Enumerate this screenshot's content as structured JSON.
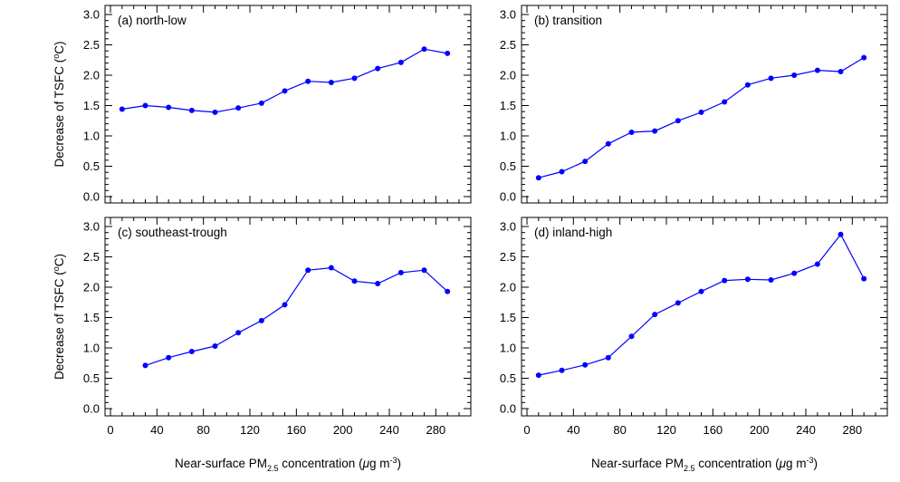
{
  "figure": {
    "ylabel": "Decrease of TSFC (",
    "ylabel_sup": "o",
    "ylabel_tail": "C)",
    "xlabel_pre": "Near-surface PM",
    "xlabel_sub": "2.5",
    "xlabel_mid": " concentration (",
    "xlabel_mu": "μ",
    "xlabel_unit": "g m",
    "xlabel_sup": "-3",
    "xlabel_close": ")"
  },
  "style": {
    "series_color": "#0000ff",
    "axis_color": "#000000"
  },
  "chart_data": [
    {
      "type": "line",
      "title": "(a) north-low",
      "xlim": [
        0,
        300
      ],
      "ylim": [
        0.0,
        3.0
      ],
      "x": [
        10,
        30,
        50,
        70,
        90,
        110,
        130,
        150,
        170,
        190,
        210,
        230,
        250,
        270,
        290
      ],
      "y": [
        1.44,
        1.5,
        1.47,
        1.42,
        1.39,
        1.46,
        1.54,
        1.74,
        1.9,
        1.88,
        1.95,
        2.11,
        2.21,
        2.43,
        2.36
      ]
    },
    {
      "type": "line",
      "title": "(b) transition",
      "xlim": [
        0,
        300
      ],
      "ylim": [
        0.0,
        3.0
      ],
      "x": [
        10,
        30,
        50,
        70,
        90,
        110,
        130,
        150,
        170,
        190,
        210,
        230,
        250,
        270,
        290
      ],
      "y": [
        0.31,
        0.41,
        0.58,
        0.87,
        1.06,
        1.08,
        1.25,
        1.39,
        1.56,
        1.84,
        1.95,
        2.0,
        2.08,
        2.06,
        2.29
      ]
    },
    {
      "type": "line",
      "title": "(c) southeast-trough",
      "xlim": [
        0,
        300
      ],
      "ylim": [
        0.0,
        3.0
      ],
      "x": [
        30,
        50,
        70,
        90,
        110,
        130,
        150,
        170,
        190,
        210,
        230,
        250,
        270,
        290
      ],
      "y": [
        0.71,
        0.84,
        0.94,
        1.03,
        1.25,
        1.45,
        1.71,
        2.28,
        2.32,
        2.1,
        2.06,
        2.24,
        2.28,
        1.93
      ]
    },
    {
      "type": "line",
      "title": "(d) inland-high",
      "xlim": [
        0,
        300
      ],
      "ylim": [
        0.0,
        3.0
      ],
      "x": [
        10,
        30,
        50,
        70,
        90,
        110,
        130,
        150,
        170,
        190,
        210,
        230,
        250,
        270,
        290
      ],
      "y": [
        0.55,
        0.63,
        0.72,
        0.84,
        1.19,
        1.55,
        1.74,
        1.93,
        2.11,
        2.13,
        2.12,
        2.23,
        2.38,
        2.87,
        2.14
      ]
    }
  ],
  "axes": {
    "yticks": [
      "0.0",
      "0.5",
      "1.0",
      "1.5",
      "2.0",
      "2.5",
      "3.0"
    ],
    "xticks": [
      "0",
      "40",
      "80",
      "120",
      "160",
      "200",
      "240",
      "280"
    ]
  }
}
